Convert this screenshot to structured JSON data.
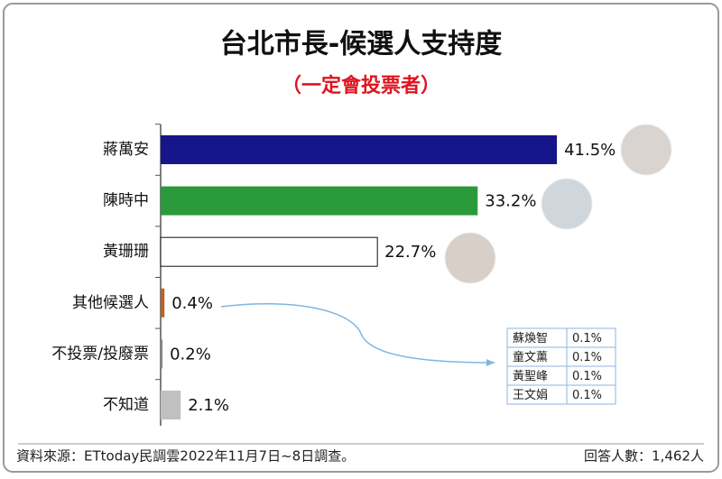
{
  "chart_data": {
    "type": "hbar",
    "title": "台北市長-候選人支持度",
    "subtitle": "（一定會投票者）",
    "categories": [
      "蔣萬安",
      "陳時中",
      "黃珊珊",
      "其他候選人",
      "不投票/投廢票",
      "不知道"
    ],
    "values": [
      41.5,
      33.2,
      22.7,
      0.4,
      0.2,
      2.1
    ],
    "value_labels": [
      "41.5%",
      "33.2%",
      "22.7%",
      "0.4%",
      "0.2%",
      "2.1%"
    ],
    "colors": [
      "#16168a",
      "#2a9a3a",
      "#ffffff",
      "#b8632a",
      "#888888",
      "#c0c0c0"
    ],
    "inset_table": {
      "rows": [
        [
          "蘇煥智",
          "0.1%"
        ],
        [
          "童文薰",
          "0.1%"
        ],
        [
          "黃聖峰",
          "0.1%"
        ],
        [
          "王文娟",
          "0.1%"
        ]
      ]
    },
    "source": "資料來源：ETtoday民調雲2022年11月7日~8日調查。",
    "sample": "回答人數：1,462人"
  }
}
